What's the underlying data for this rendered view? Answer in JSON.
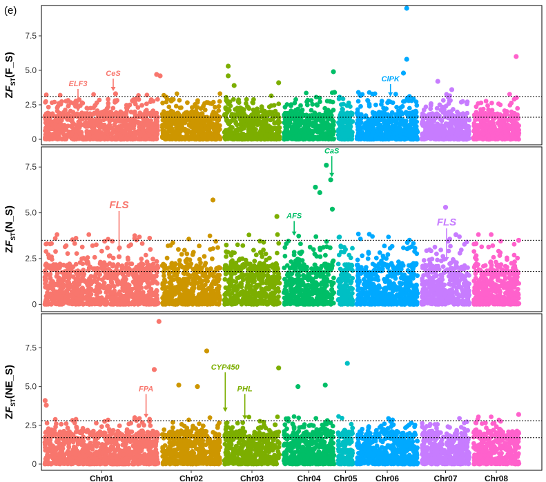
{
  "figure": {
    "panel_label": "(e)"
  },
  "chart_data": {
    "type": "scatter",
    "subtype": "manhattan",
    "xlabel": "",
    "chromosomes": [
      {
        "name": "Chr01",
        "color": "#F8766D"
      },
      {
        "name": "Chr02",
        "color": "#CD9600"
      },
      {
        "name": "Chr03",
        "color": "#7CAE00"
      },
      {
        "name": "Chr04",
        "color": "#00BE67"
      },
      {
        "name": "Chr05",
        "color": "#00BFC4"
      },
      {
        "name": "Chr06",
        "color": "#00A9FF"
      },
      {
        "name": "Chr07",
        "color": "#C77CFF"
      },
      {
        "name": "Chr08",
        "color": "#FF61CC"
      }
    ],
    "panels": [
      {
        "id": "F_S",
        "ylabel_main": "ZF",
        "ylabel_sub": "ST",
        "ylabel_paren": "(F_S)",
        "ylim": [
          -0.4,
          9.7
        ],
        "yticks": [
          0,
          2.5,
          5.0,
          7.5
        ],
        "ytick_labels": [
          "0",
          "2.5",
          "5.0",
          "7.5"
        ],
        "thresholds": [
          1.6,
          3.1
        ],
        "notable_points": [
          {
            "chr": "Chr01",
            "pos": 0.62,
            "value": 3.3
          },
          {
            "chr": "Chr01",
            "pos": 0.97,
            "value": 4.7
          },
          {
            "chr": "Chr01",
            "pos": 1.0,
            "value": 4.6
          },
          {
            "chr": "Chr03",
            "pos": 0.1,
            "value": 5.3
          },
          {
            "chr": "Chr03",
            "pos": 0.1,
            "value": 4.6
          },
          {
            "chr": "Chr03",
            "pos": 0.2,
            "value": 3.9
          },
          {
            "chr": "Chr03",
            "pos": 0.95,
            "value": 4.1
          },
          {
            "chr": "Chr04",
            "pos": 0.95,
            "value": 4.9
          },
          {
            "chr": "Chr04",
            "pos": 0.97,
            "value": 3.4
          },
          {
            "chr": "Chr06",
            "pos": 0.8,
            "value": 9.5
          },
          {
            "chr": "Chr06",
            "pos": 0.8,
            "value": 5.8
          },
          {
            "chr": "Chr06",
            "pos": 0.75,
            "value": 4.8
          },
          {
            "chr": "Chr07",
            "pos": 0.35,
            "value": 4.2
          },
          {
            "chr": "Chr07",
            "pos": 0.62,
            "value": 3.6
          },
          {
            "chr": "Chr08",
            "pos": 0.9,
            "value": 6.0
          }
        ],
        "annotations": [
          {
            "gene": "ELF3",
            "chr": "Chr01",
            "pos": 0.3,
            "value": 1.8,
            "label_value": 3.85,
            "color": "#F8766D"
          },
          {
            "gene": "CeS",
            "chr": "Chr01",
            "pos": 0.6,
            "value": 3.3,
            "label_value": 4.6,
            "color": "#F8766D"
          },
          {
            "gene": "ClPK",
            "chr": "Chr06",
            "pos": 0.55,
            "value": 2.9,
            "label_value": 4.2,
            "color": "#00A9FF"
          }
        ]
      },
      {
        "id": "N_S",
        "ylabel_main": "ZF",
        "ylabel_sub": "ST",
        "ylabel_paren": "(N_S)",
        "ylim": [
          -0.4,
          8.6
        ],
        "yticks": [
          0,
          2.5,
          5.0,
          7.5
        ],
        "ytick_labels": [
          "0",
          "2.5",
          "5.0",
          "7.5"
        ],
        "thresholds": [
          1.8,
          3.5
        ],
        "notable_points": [
          {
            "chr": "Chr01",
            "pos": 0.65,
            "value": 2.6
          },
          {
            "chr": "Chr02",
            "pos": 0.85,
            "value": 5.7
          },
          {
            "chr": "Chr03",
            "pos": 0.92,
            "value": 4.8
          },
          {
            "chr": "Chr04",
            "pos": 0.62,
            "value": 6.4
          },
          {
            "chr": "Chr04",
            "pos": 0.7,
            "value": 6.1
          },
          {
            "chr": "Chr04",
            "pos": 0.82,
            "value": 7.6
          },
          {
            "chr": "Chr04",
            "pos": 0.9,
            "value": 6.8
          },
          {
            "chr": "Chr04",
            "pos": 0.93,
            "value": 5.2
          },
          {
            "chr": "Chr07",
            "pos": 0.5,
            "value": 5.3
          },
          {
            "chr": "Chr07",
            "pos": 0.7,
            "value": 3.8
          },
          {
            "chr": "Chr08",
            "pos": 0.95,
            "value": 3.5
          }
        ],
        "annotations": [
          {
            "gene": "FLS",
            "chr": "Chr01",
            "pos": 0.65,
            "value": 2.7,
            "label_value": 5.25,
            "color": "#F8766D"
          },
          {
            "gene": "AFS",
            "chr": "Chr04",
            "pos": 0.23,
            "value": 3.6,
            "label_value": 4.7,
            "color": "#00BE67"
          },
          {
            "gene": "CaS",
            "chr": "Chr04",
            "pos": 0.92,
            "value": 6.8,
            "label_value": 8.25,
            "color": "#00BE67"
          },
          {
            "gene": "FLS",
            "chr": "Chr07",
            "pos": 0.52,
            "value": 2.2,
            "label_value": 4.3,
            "color": "#C77CFF"
          }
        ]
      },
      {
        "id": "NE_S",
        "ylabel_main": "ZF",
        "ylabel_sub": "ST",
        "ylabel_paren": "(NE_S)",
        "ylim": [
          -0.4,
          9.7
        ],
        "yticks": [
          0,
          2.5,
          5.0,
          7.5
        ],
        "ytick_labels": [
          "0",
          "2.5",
          "5.0",
          "7.5"
        ],
        "thresholds": [
          1.7,
          2.8
        ],
        "notable_points": [
          {
            "chr": "Chr01",
            "pos": 0.02,
            "value": 4.1
          },
          {
            "chr": "Chr01",
            "pos": 0.03,
            "value": 3.8
          },
          {
            "chr": "Chr01",
            "pos": 0.99,
            "value": 9.2
          },
          {
            "chr": "Chr01",
            "pos": 0.95,
            "value": 6.1
          },
          {
            "chr": "Chr02",
            "pos": 0.75,
            "value": 7.3
          },
          {
            "chr": "Chr02",
            "pos": 0.3,
            "value": 5.1
          },
          {
            "chr": "Chr02",
            "pos": 0.6,
            "value": 5.0
          },
          {
            "chr": "Chr03",
            "pos": 0.95,
            "value": 6.2
          },
          {
            "chr": "Chr04",
            "pos": 0.3,
            "value": 5.0
          },
          {
            "chr": "Chr04",
            "pos": 0.8,
            "value": 5.1
          },
          {
            "chr": "Chr05",
            "pos": 0.6,
            "value": 6.5
          },
          {
            "chr": "Chr08",
            "pos": 0.95,
            "value": 3.2
          }
        ],
        "annotations": [
          {
            "gene": "FPA",
            "chr": "Chr01",
            "pos": 0.88,
            "value": 2.8,
            "label_value": 4.7,
            "color": "#F8766D"
          },
          {
            "gene": "CYP450",
            "chr": "Chr03",
            "pos": 0.05,
            "value": 3.2,
            "label_value": 6.1,
            "color": "#7CAE00"
          },
          {
            "gene": "PHL",
            "chr": "Chr03",
            "pos": 0.38,
            "value": 2.7,
            "label_value": 4.7,
            "color": "#7CAE00"
          }
        ]
      }
    ]
  }
}
